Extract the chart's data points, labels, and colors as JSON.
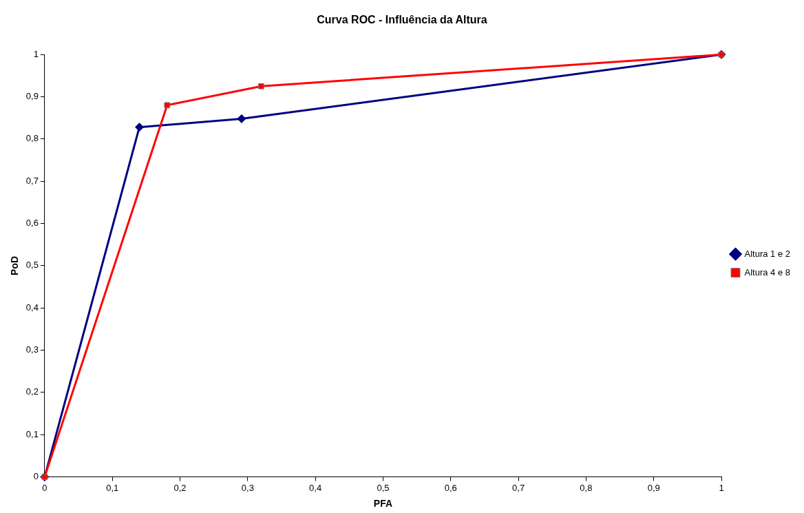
{
  "chart_data": {
    "type": "line",
    "title": "Curva ROC - Influência da Altura",
    "xlabel": "PFA",
    "ylabel": "PoD",
    "xlim": [
      0,
      1
    ],
    "ylim": [
      0,
      1
    ],
    "xticks": [
      0,
      {
        "value": 0.1,
        "label": "0,1"
      },
      {
        "value": 0.2,
        "label": "0,2"
      },
      {
        "value": 0.3,
        "label": "0,3"
      },
      {
        "value": 0.4,
        "label": "0,4"
      },
      {
        "value": 0.5,
        "label": "0,5"
      },
      {
        "value": 0.6,
        "label": "0,6"
      },
      {
        "value": 0.7,
        "label": "0,7"
      },
      {
        "value": 0.8,
        "label": "0,8"
      },
      {
        "value": 0.9,
        "label": "0,9"
      },
      1
    ],
    "yticks": [
      0,
      {
        "value": 0.1,
        "label": "0,1"
      },
      {
        "value": 0.2,
        "label": "0,2"
      },
      {
        "value": 0.3,
        "label": "0,3"
      },
      {
        "value": 0.4,
        "label": "0,4"
      },
      {
        "value": 0.5,
        "label": "0,5"
      },
      {
        "value": 0.6,
        "label": "0,6"
      },
      {
        "value": 0.7,
        "label": "0,7"
      },
      {
        "value": 0.8,
        "label": "0,8"
      },
      {
        "value": 0.9,
        "label": "0,9"
      },
      1
    ],
    "grid": false,
    "legend": "right",
    "line_style": "solid",
    "series": [
      {
        "name": "Altura 1 e 2",
        "color": "#000080",
        "marker": "diamond",
        "x": [
          0,
          0.14,
          0.291,
          1
        ],
        "values": [
          0,
          0.828,
          0.848,
          1
        ]
      },
      {
        "name": "Altura 4 e 8",
        "color": "#ff0000",
        "marker": "square",
        "x": [
          0,
          0.181,
          0.32,
          1
        ],
        "values": [
          0,
          0.88,
          0.925,
          1
        ]
      }
    ]
  }
}
